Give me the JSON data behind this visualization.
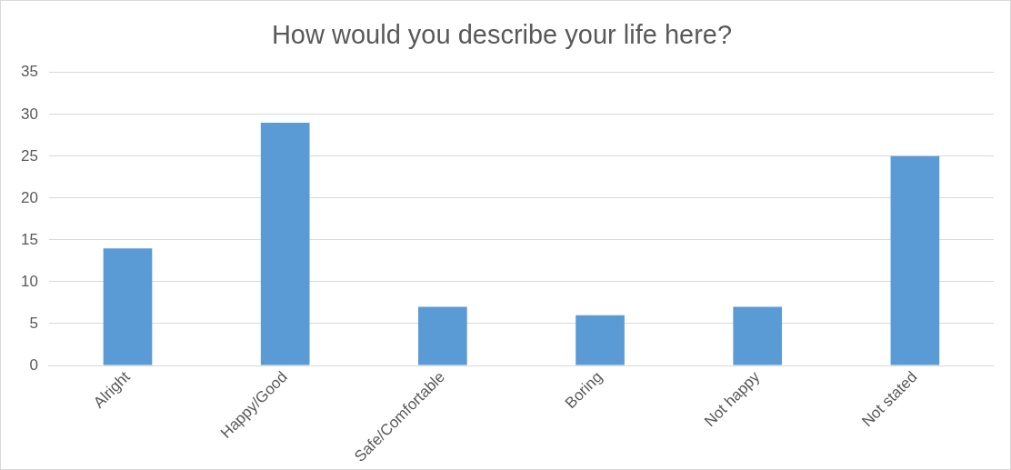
{
  "chart_data": {
    "type": "bar",
    "title": "How would you describe your life here?",
    "categories": [
      "Alright",
      "Happy/Good",
      "Safe/Comfortable",
      "Boring",
      "Not happy",
      "Not stated"
    ],
    "values": [
      14,
      29,
      7,
      6,
      7,
      25
    ],
    "color": "#5b9bd5",
    "ylim": [
      0,
      35
    ],
    "yticks": [
      0,
      5,
      10,
      15,
      20,
      25,
      30,
      35
    ],
    "grid": "y",
    "legend": false
  }
}
